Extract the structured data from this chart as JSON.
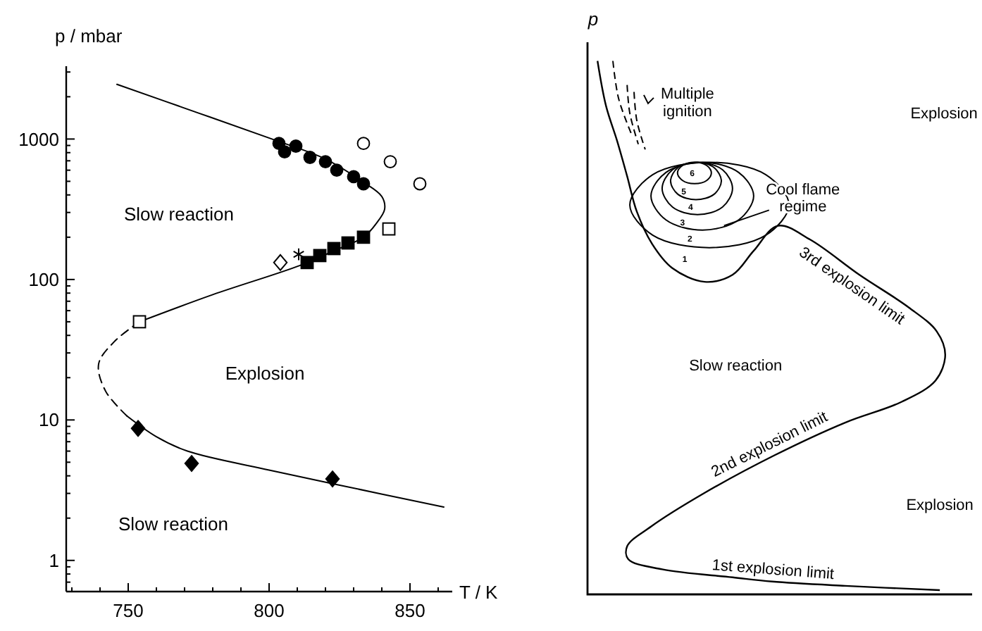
{
  "chart_data": [
    {
      "type": "line",
      "xlabel": "T / K",
      "ylabel": "p / mbar",
      "log": "y",
      "marker": "none",
      "line_style": "solid",
      "xlim": [
        728,
        865
      ],
      "ylim": [
        0.6,
        3300
      ],
      "xticks": [
        {
          "value": 730,
          "label": null
        },
        {
          "value": 740,
          "label": null
        },
        750,
        {
          "value": 760,
          "label": null
        },
        {
          "value": 770,
          "label": null
        },
        {
          "value": 780,
          "label": null
        },
        {
          "value": 790,
          "label": null
        },
        800,
        {
          "value": 810,
          "label": null
        },
        {
          "value": 820,
          "label": null
        },
        {
          "value": 830,
          "label": null
        },
        {
          "value": 840,
          "label": null
        },
        850,
        {
          "value": 860,
          "label": null
        }
      ],
      "yticks": [
        {
          "value": 0.6,
          "label": null
        },
        {
          "value": 0.7,
          "label": null
        },
        {
          "value": 0.8,
          "label": null
        },
        {
          "value": 0.9,
          "label": null
        },
        1,
        {
          "value": 2,
          "label": null
        },
        {
          "value": 3,
          "label": null
        },
        {
          "value": 4,
          "label": null
        },
        {
          "value": 5,
          "label": null
        },
        {
          "value": 6,
          "label": null
        },
        {
          "value": 7,
          "label": null
        },
        {
          "value": 8,
          "label": null
        },
        {
          "value": 9,
          "label": null
        },
        10,
        {
          "value": 20,
          "label": null
        },
        {
          "value": 30,
          "label": null
        },
        {
          "value": 40,
          "label": null
        },
        {
          "value": 50,
          "label": null
        },
        {
          "value": 60,
          "label": null
        },
        {
          "value": 70,
          "label": null
        },
        {
          "value": 80,
          "label": null
        },
        {
          "value": 90,
          "label": null
        },
        100,
        {
          "value": 200,
          "label": null
        },
        {
          "value": 300,
          "label": null
        },
        {
          "value": 400,
          "label": null
        },
        {
          "value": 500,
          "label": null
        },
        {
          "value": 600,
          "label": null
        },
        {
          "value": 700,
          "label": null
        },
        {
          "value": 800,
          "label": null
        },
        {
          "value": 900,
          "label": null
        },
        1000,
        {
          "value": 2000,
          "label": null
        },
        {
          "value": 3000,
          "label": null
        }
      ],
      "annotations": [
        "Slow reaction",
        "Explosion",
        "Slow reaction"
      ],
      "series": [
        {
          "type": "line",
          "color": "#000000",
          "x": [
            746,
            775,
            801,
            820,
            833,
            840,
            841,
            838,
            833.5,
            823,
            811,
            780,
            754
          ],
          "values": [
            2450,
            1530,
            1000,
            720,
            500,
            390,
            316,
            250,
            200,
            160,
            126,
            78,
            50
          ]
        },
        {
          "type": "line",
          "color": "#000000",
          "line_style": "dashed",
          "x": [
            754,
            745,
            739.5,
            742,
            749.5
          ],
          "values": [
            50,
            36,
            25,
            16,
            10.7
          ]
        },
        {
          "type": "line",
          "color": "#000000",
          "x": [
            749.5,
            760,
            771,
            800,
            823,
            862
          ],
          "values": [
            10.7,
            7.6,
            6.0,
            4.4,
            3.5,
            2.4
          ]
        },
        {
          "type": "scatter",
          "color": "#000000",
          "marker": "circle",
          "x": [
            803.5,
            805.5,
            809.5,
            814.5,
            820,
            824,
            830,
            833.5
          ],
          "values": [
            930,
            810,
            890,
            740,
            690,
            600,
            540,
            480
          ]
        },
        {
          "type": "scatter",
          "color": "#ffffff",
          "marker": "circle",
          "x": [
            833.5,
            843,
            853.5
          ],
          "values": [
            930,
            690,
            480
          ]
        },
        {
          "type": "scatter",
          "color": "#000000",
          "marker": "square",
          "x": [
            813.5,
            818,
            823,
            828,
            833.5
          ],
          "values": [
            132,
            148,
            166,
            182,
            200
          ]
        },
        {
          "type": "scatter",
          "color": "#ffffff",
          "marker": "square",
          "x": [
            754,
            842.5
          ],
          "values": [
            50,
            229
          ]
        },
        {
          "type": "scatter",
          "color": "#ffffff",
          "marker": "diamond",
          "x": [
            804
          ],
          "values": [
            132
          ]
        },
        {
          "type": "scatter",
          "color": "#000000",
          "marker": "cross",
          "x": [
            810.5
          ],
          "values": [
            151
          ]
        },
        {
          "type": "scatter",
          "color": "#000000",
          "marker": "diamond",
          "x": [
            753.5,
            772.5,
            822.5
          ],
          "values": [
            8.7,
            4.9,
            3.8
          ]
        }
      ]
    },
    {
      "type": "other",
      "ylabel": "p",
      "annotations": [
        "Explosion",
        "Multiple\nignition",
        "Cool flame\nregime",
        "3rd explosion limit",
        "Slow reaction",
        "2nd explosion limit",
        "Explosion",
        "1st explosion limit",
        "1",
        "2",
        "3",
        "4",
        "5",
        "6"
      ]
    }
  ]
}
